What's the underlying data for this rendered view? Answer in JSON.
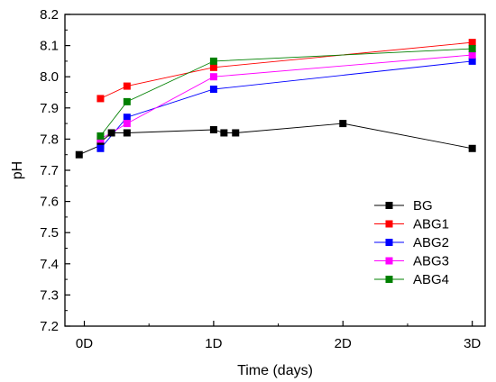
{
  "chart_data": {
    "type": "line",
    "title": "",
    "xlabel": "Time (days)",
    "ylabel": "pH",
    "xlim": [
      -0.15,
      3.1
    ],
    "ylim": [
      7.2,
      8.2
    ],
    "x_ticks": [
      {
        "value": 0,
        "label": "0D"
      },
      {
        "value": 1,
        "label": "1D"
      },
      {
        "value": 2,
        "label": "2D"
      },
      {
        "value": 3,
        "label": "3D"
      }
    ],
    "y_ticks": [
      7.2,
      7.3,
      7.4,
      7.5,
      7.6,
      7.7,
      7.8,
      7.9,
      8.0,
      8.1,
      8.2
    ],
    "y_tick_labels": [
      "7.2",
      "7.3",
      "7.4",
      "7.5",
      "7.6",
      "7.7",
      "7.8",
      "7.9",
      "8.0",
      "8.1",
      "8.2"
    ],
    "grid": false,
    "legend_position": "right-center",
    "series": [
      {
        "name": "BG",
        "color": "#000000",
        "x": [
          -0.04,
          0.125,
          0.125,
          0.21,
          0.33,
          1.0,
          1.08,
          1.17,
          2.0,
          3.0
        ],
        "y": [
          7.75,
          7.78,
          7.79,
          7.82,
          7.82,
          7.83,
          7.82,
          7.82,
          7.85,
          7.77
        ]
      },
      {
        "name": "ABG1",
        "color": "#ff0000",
        "x": [
          0.125,
          0.33,
          1.0,
          3.0
        ],
        "y": [
          7.93,
          7.97,
          8.03,
          8.11
        ]
      },
      {
        "name": "ABG2",
        "color": "#0000ff",
        "x": [
          0.125,
          0.33,
          1.0,
          3.0
        ],
        "y": [
          7.77,
          7.87,
          7.96,
          8.05
        ]
      },
      {
        "name": "ABG3",
        "color": "#ff00ff",
        "x": [
          0.125,
          0.33,
          1.0,
          3.0
        ],
        "y": [
          7.8,
          7.85,
          8.0,
          8.07
        ]
      },
      {
        "name": "ABG4",
        "color": "#008000",
        "x": [
          0.125,
          0.33,
          1.0,
          3.0
        ],
        "y": [
          7.81,
          7.92,
          8.05,
          8.09
        ]
      }
    ]
  }
}
